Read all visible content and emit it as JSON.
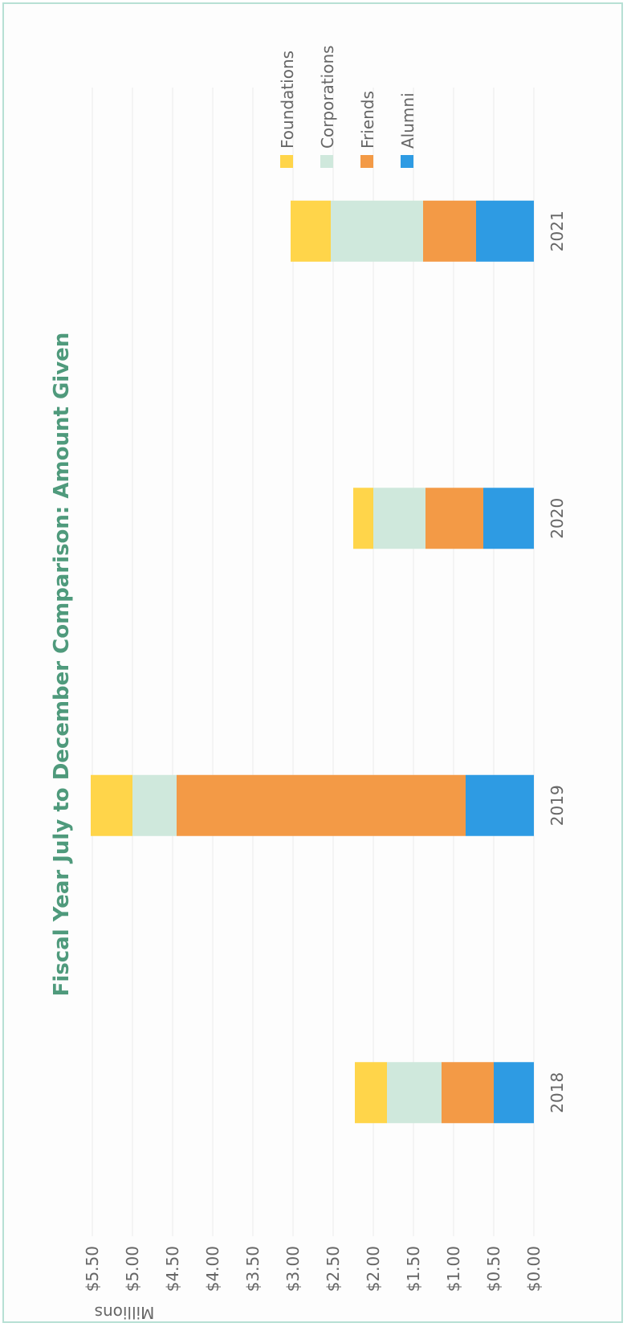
{
  "chart_data": {
    "type": "bar",
    "stacked": true,
    "orientation": "rotated-90ccw",
    "title": "Fiscal Year July to December Comparison: Amount Given",
    "ylabel": "Millions",
    "categories": [
      "2018",
      "2019",
      "2020",
      "2021"
    ],
    "yticks": [
      "$0.00",
      "$0.50",
      "$1.00",
      "$1.50",
      "$2.00",
      "$2.50",
      "$3.00",
      "$3.50",
      "$4.00",
      "$4.50",
      "$5.00",
      "$5.50"
    ],
    "ylim": [
      0,
      5.5
    ],
    "grid": true,
    "legend_position": "top-right",
    "series": [
      {
        "name": "Alumni",
        "color": "#2e9be3",
        "values": [
          0.5,
          0.85,
          0.63,
          0.72
        ]
      },
      {
        "name": "Friends",
        "color": "#f39a46",
        "values": [
          0.65,
          3.6,
          0.72,
          0.66
        ]
      },
      {
        "name": "Corporations",
        "color": "#cfe8dc",
        "values": [
          0.68,
          0.55,
          0.65,
          1.15
        ]
      },
      {
        "name": "Foundations",
        "color": "#ffd54a",
        "values": [
          0.4,
          0.52,
          0.25,
          0.5
        ]
      }
    ],
    "legend_order": [
      "Foundations",
      "Corporations",
      "Friends",
      "Alumni"
    ],
    "title_color": "#4f9a7c",
    "axis_text_color": "#666666"
  }
}
